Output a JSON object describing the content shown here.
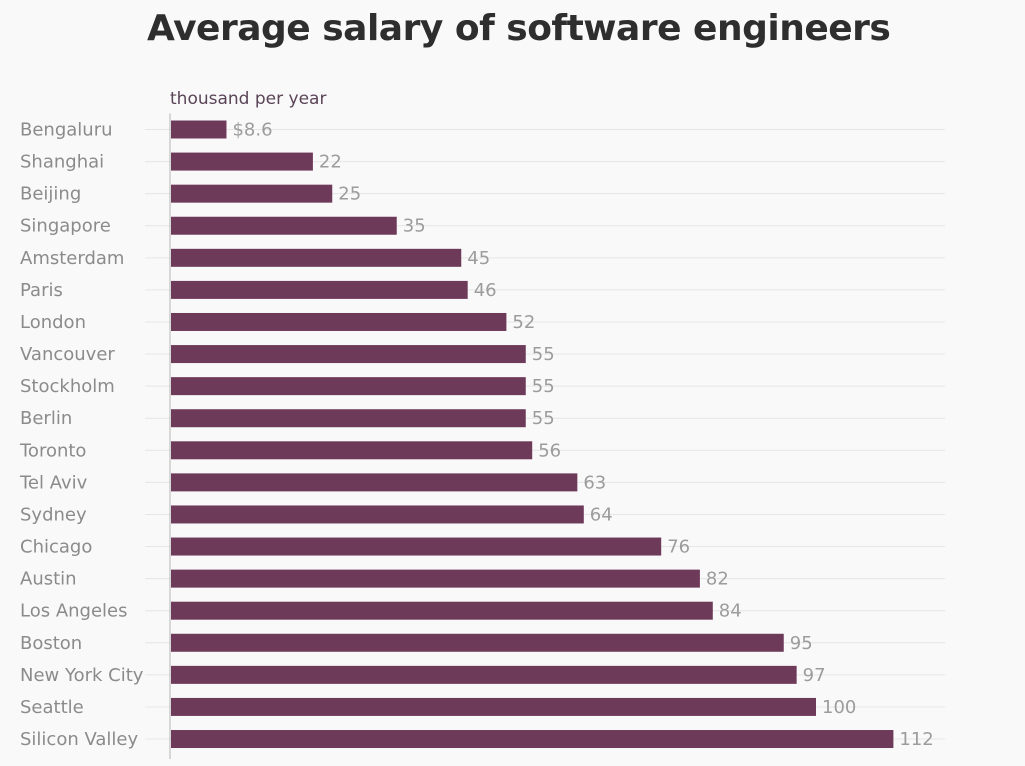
{
  "chart_data": {
    "type": "bar",
    "orientation": "horizontal",
    "title": "Average salary of software engineers",
    "unit_label": "thousand per year",
    "categories": [
      "Bengaluru",
      "Shanghai",
      "Beijing",
      "Singapore",
      "Amsterdam",
      "Paris",
      "London",
      "Vancouver",
      "Stockholm",
      "Berlin",
      "Toronto",
      "Tel Aviv",
      "Sydney",
      "Chicago",
      "Austin",
      "Los Angeles",
      "Boston",
      "New York City",
      "Seattle",
      "Silicon Valley"
    ],
    "values": [
      8.6,
      22,
      25,
      35,
      45,
      46,
      52,
      55,
      55,
      55,
      56,
      63,
      64,
      76,
      82,
      84,
      95,
      97,
      100,
      112
    ],
    "value_labels": [
      "$8.6",
      "22",
      "25",
      "35",
      "45",
      "46",
      "52",
      "55",
      "55",
      "55",
      "56",
      "63",
      "64",
      "76",
      "82",
      "84",
      "95",
      "97",
      "100",
      "112"
    ],
    "bar_color": "#6e3a5a",
    "grid": true,
    "legend": false
  }
}
